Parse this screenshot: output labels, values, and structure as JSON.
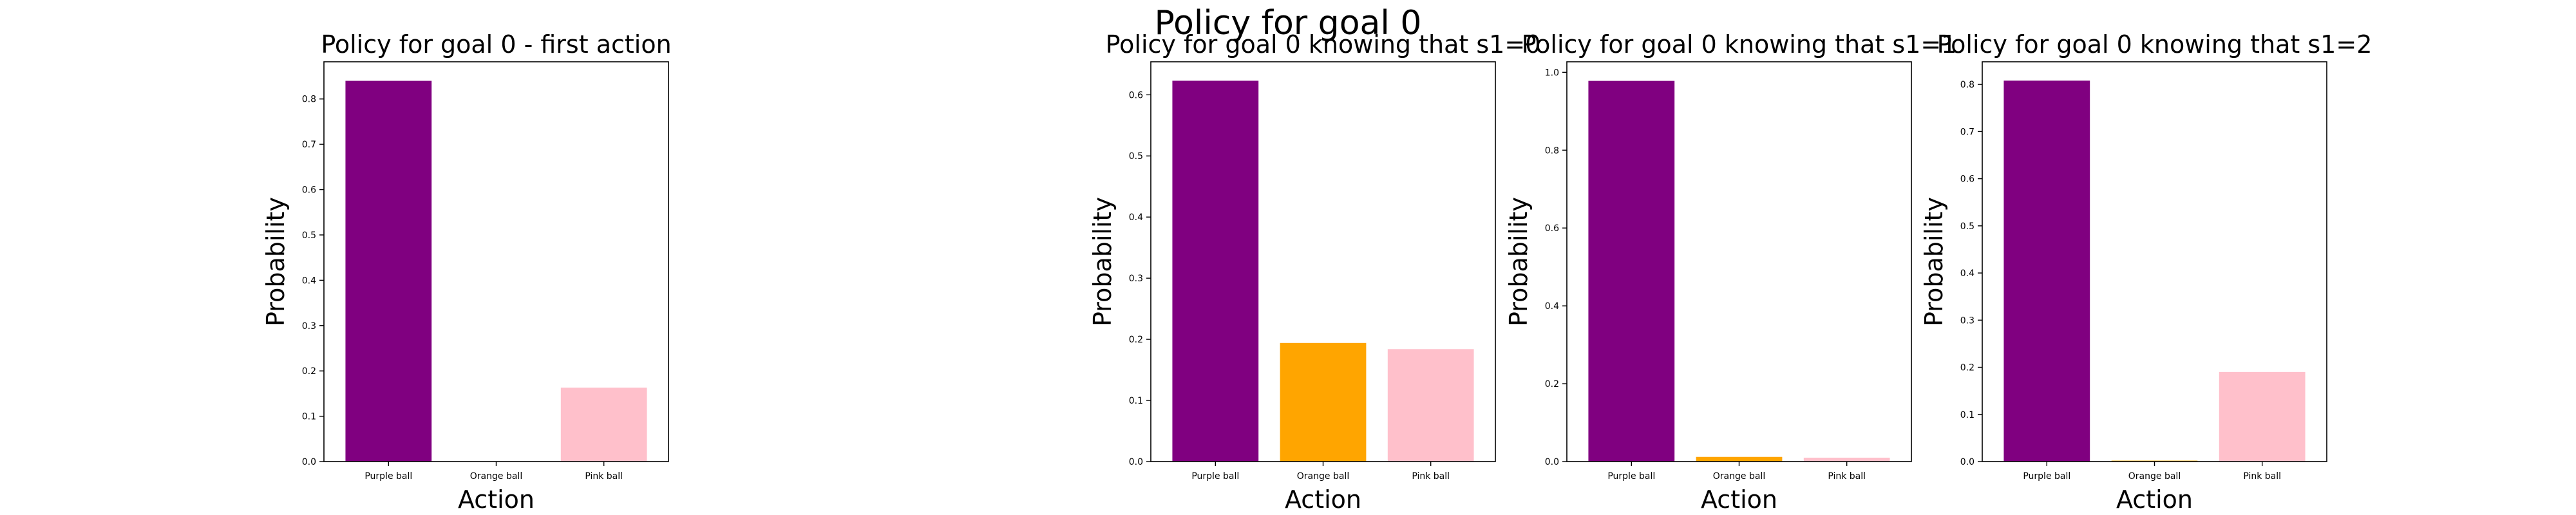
{
  "figure": {
    "suptitle": "Policy for goal 0"
  },
  "chart_data": [
    {
      "type": "bar",
      "title": "Policy for goal 0 - first action",
      "xlabel": "Action",
      "ylabel": "Probability",
      "categories": [
        "Purple ball",
        "Orange ball",
        "Pink ball"
      ],
      "values": [
        0.84,
        0.0,
        0.163
      ],
      "colors": [
        "#800080",
        "#FFA500",
        "#FFC0CB"
      ],
      "ylim": [
        0,
        0.882
      ],
      "yticks": [
        "0.0",
        "0.1",
        "0.2",
        "0.3",
        "0.4",
        "0.5",
        "0.6",
        "0.7",
        "0.8"
      ],
      "ytick_values": [
        0,
        0.1,
        0.2,
        0.3,
        0.4,
        0.5,
        0.6,
        0.7,
        0.8
      ],
      "grid": false
    },
    {
      "type": "bar",
      "title": "Policy for goal 0 knowing that s1=0",
      "xlabel": "Action",
      "ylabel": "Probability",
      "categories": [
        "Purple ball",
        "Orange ball",
        "Pink ball"
      ],
      "values": [
        0.623,
        0.194,
        0.184
      ],
      "colors": [
        "#800080",
        "#FFA500",
        "#FFC0CB"
      ],
      "ylim": [
        0,
        0.654
      ],
      "yticks": [
        "0.0",
        "0.1",
        "0.2",
        "0.3",
        "0.4",
        "0.5",
        "0.6"
      ],
      "ytick_values": [
        0,
        0.1,
        0.2,
        0.3,
        0.4,
        0.5,
        0.6
      ],
      "grid": false
    },
    {
      "type": "bar",
      "title": "Policy for goal 0 knowing that s1=1",
      "xlabel": "Action",
      "ylabel": "Probability",
      "categories": [
        "Purple ball",
        "Orange ball",
        "Pink ball"
      ],
      "values": [
        0.978,
        0.012,
        0.01
      ],
      "colors": [
        "#800080",
        "#FFA500",
        "#FFC0CB"
      ],
      "ylim": [
        0,
        1.027
      ],
      "yticks": [
        "0.0",
        "0.2",
        "0.4",
        "0.6",
        "0.8",
        "1.0"
      ],
      "ytick_values": [
        0,
        0.2,
        0.4,
        0.6,
        0.8,
        1.0
      ],
      "grid": false
    },
    {
      "type": "bar",
      "title": "Policy for goal 0 knowing that s1=2",
      "xlabel": "Action",
      "ylabel": "Probability",
      "categories": [
        "Purple ball",
        "Orange ball",
        "Pink ball"
      ],
      "values": [
        0.808,
        0.002,
        0.19
      ],
      "colors": [
        "#800080",
        "#FFA500",
        "#FFC0CB"
      ],
      "ylim": [
        0,
        0.848
      ],
      "yticks": [
        "0.0",
        "0.1",
        "0.2",
        "0.3",
        "0.4",
        "0.5",
        "0.6",
        "0.7",
        "0.8"
      ],
      "ytick_values": [
        0,
        0.1,
        0.2,
        0.3,
        0.4,
        0.5,
        0.6,
        0.7,
        0.8
      ],
      "grid": false
    }
  ]
}
